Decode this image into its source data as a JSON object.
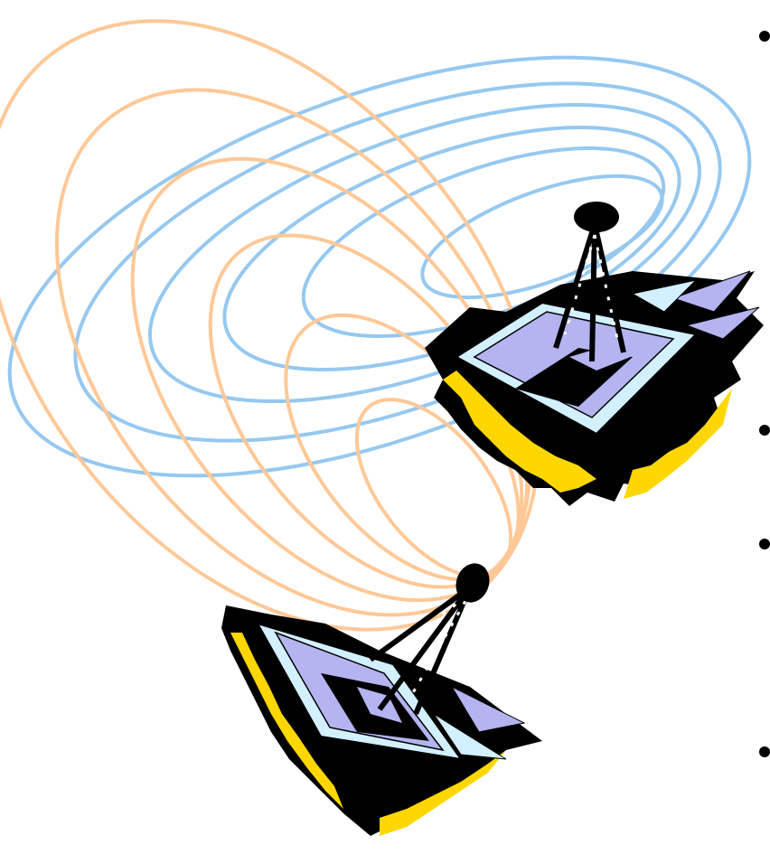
{
  "illustration": {
    "subject": "satellite-dish-antennas-transmitting-waves",
    "dish_count": 2,
    "wave_colors": {
      "orange_waves": "#FFC896",
      "blue_waves": "#96C8F0"
    },
    "dish_colors": {
      "panel": "#B4B4F0",
      "panel_light": "#D2F0FF",
      "shadow": "#000000",
      "edge_accent": "#FFD700"
    }
  },
  "bullets": {
    "count": 4
  }
}
